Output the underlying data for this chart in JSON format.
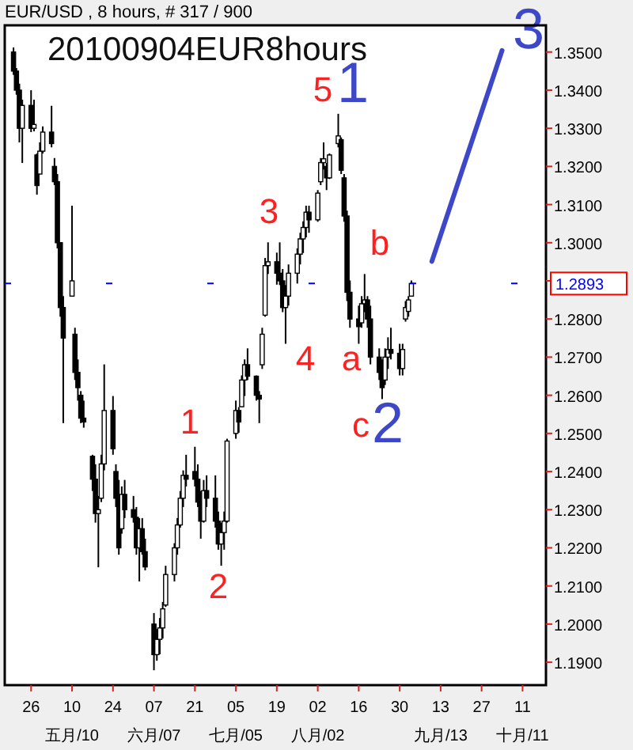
{
  "chart_data": {
    "type": "candlestick",
    "title": "20100904EUR8hours",
    "subtitle": "EUR/USD , 8 hours, # 317 / 900",
    "x": [
      "2010-04-20",
      "2010-04-21",
      "2010-04-22",
      "2010-04-23",
      "2010-04-26",
      "2010-04-27",
      "2010-04-28",
      "2010-04-29",
      "2010-04-30",
      "2010-05-03",
      "2010-05-04",
      "2010-05-05",
      "2010-05-06",
      "2010-05-07",
      "2010-05-10",
      "2010-05-11",
      "2010-05-12",
      "2010-05-13",
      "2010-05-14",
      "2010-05-17",
      "2010-05-18",
      "2010-05-19",
      "2010-05-20",
      "2010-05-21",
      "2010-05-24",
      "2010-05-25",
      "2010-05-26",
      "2010-05-27",
      "2010-05-28",
      "2010-05-31",
      "2010-06-01",
      "2010-06-02",
      "2010-06-03",
      "2010-06-04",
      "2010-06-07",
      "2010-06-08",
      "2010-06-09",
      "2010-06-10",
      "2010-06-11",
      "2010-06-14",
      "2010-06-15",
      "2010-06-16",
      "2010-06-17",
      "2010-06-18",
      "2010-06-21",
      "2010-06-22",
      "2010-06-23",
      "2010-06-24",
      "2010-06-25",
      "2010-06-28",
      "2010-06-29",
      "2010-06-30",
      "2010-07-01",
      "2010-07-02",
      "2010-07-05",
      "2010-07-06",
      "2010-07-07",
      "2010-07-08",
      "2010-07-09",
      "2010-07-12",
      "2010-07-13",
      "2010-07-14",
      "2010-07-15",
      "2010-07-16",
      "2010-07-19",
      "2010-07-20",
      "2010-07-21",
      "2010-07-22",
      "2010-07-23",
      "2010-07-26",
      "2010-07-27",
      "2010-07-28",
      "2010-07-29",
      "2010-07-30",
      "2010-08-02",
      "2010-08-03",
      "2010-08-04",
      "2010-08-05",
      "2010-08-06",
      "2010-08-09",
      "2010-08-10",
      "2010-08-11",
      "2010-08-12",
      "2010-08-13",
      "2010-08-16",
      "2010-08-17",
      "2010-08-18",
      "2010-08-19",
      "2010-08-20",
      "2010-08-23",
      "2010-08-24",
      "2010-08-25",
      "2010-08-26",
      "2010-08-27",
      "2010-08-30",
      "2010-08-31",
      "2010-09-01",
      "2010-09-02",
      "2010-09-03"
    ],
    "ohlc": [
      [
        1.35,
        1.3512,
        1.344,
        1.345
      ],
      [
        1.345,
        1.3458,
        1.3388,
        1.34
      ],
      [
        1.34,
        1.3417,
        1.3263,
        1.33
      ],
      [
        1.33,
        1.3375,
        1.3209,
        1.336
      ],
      [
        1.336,
        1.34,
        1.329,
        1.33
      ],
      [
        1.33,
        1.3375,
        1.3292,
        1.331
      ],
      [
        1.323,
        1.3234,
        1.3126,
        1.315
      ],
      [
        1.318,
        1.3263,
        1.318,
        1.324
      ],
      [
        1.324,
        1.3305,
        1.3234,
        1.329
      ],
      [
        1.329,
        1.3359,
        1.325,
        1.326
      ],
      [
        1.32,
        1.3222,
        1.3151,
        1.316
      ],
      [
        1.316,
        1.318,
        1.2985,
        1.3
      ],
      [
        1.3,
        1.3001,
        1.2806,
        1.283
      ],
      [
        1.283,
        1.286,
        1.2527,
        1.275
      ],
      [
        1.286,
        1.3097,
        1.286,
        1.29
      ],
      [
        1.276,
        1.2777,
        1.264,
        1.266
      ],
      [
        1.266,
        1.2694,
        1.2586,
        1.262
      ],
      [
        1.26,
        1.2611,
        1.2527,
        1.254
      ],
      [
        1.254,
        1.2586,
        1.2515,
        1.253
      ],
      [
        1.244,
        1.2444,
        1.2349,
        1.238
      ],
      [
        1.238,
        1.2419,
        1.2266,
        1.229
      ],
      [
        1.229,
        1.2336,
        1.2149,
        1.23
      ],
      [
        1.233,
        1.2444,
        1.232,
        1.242
      ],
      [
        1.242,
        1.2681,
        1.2403,
        1.256
      ],
      [
        1.256,
        1.2598,
        1.2444,
        1.246
      ],
      [
        1.24,
        1.2419,
        1.2307,
        1.233
      ],
      [
        1.233,
        1.2378,
        1.2182,
        1.22
      ],
      [
        1.225,
        1.2361,
        1.2237,
        1.234
      ],
      [
        1.234,
        1.2378,
        1.2278,
        1.23
      ],
      [
        1.23,
        1.2336,
        1.2266,
        1.228
      ],
      [
        1.228,
        1.2307,
        1.2182,
        1.22
      ],
      [
        1.22,
        1.2278,
        1.2112,
        1.225
      ],
      [
        1.225,
        1.2278,
        1.2182,
        1.219
      ],
      [
        1.219,
        1.2224,
        1.2141,
        1.215
      ],
      [
        1.2,
        1.2029,
        1.1879,
        1.192
      ],
      [
        1.192,
        1.1987,
        1.1904,
        1.196
      ],
      [
        1.196,
        1.2016,
        1.1921,
        1.199
      ],
      [
        1.199,
        1.2058,
        1.1962,
        1.204
      ],
      [
        1.205,
        1.2153,
        1.2045,
        1.213
      ],
      [
        1.213,
        1.2212,
        1.2112,
        1.22
      ],
      [
        1.22,
        1.2278,
        1.2182,
        1.226
      ],
      [
        1.226,
        1.2349,
        1.2253,
        1.233
      ],
      [
        1.233,
        1.2403,
        1.2307,
        1.239
      ],
      [
        1.239,
        1.2444,
        1.2361,
        1.238
      ],
      [
        1.24,
        1.2465,
        1.2361,
        1.238
      ],
      [
        1.238,
        1.2419,
        1.2307,
        1.232
      ],
      [
        1.232,
        1.2349,
        1.2224,
        1.227
      ],
      [
        1.227,
        1.2378,
        1.2266,
        1.235
      ],
      [
        1.235,
        1.239,
        1.2307,
        1.233
      ],
      [
        1.233,
        1.239,
        1.2253,
        1.227
      ],
      [
        1.227,
        1.2295,
        1.2195,
        1.221
      ],
      [
        1.221,
        1.2266,
        1.2153,
        1.224
      ],
      [
        1.224,
        1.2295,
        1.2195,
        1.227
      ],
      [
        1.227,
        1.2486,
        1.2266,
        1.248
      ],
      [
        1.25,
        1.2586,
        1.2486,
        1.256
      ],
      [
        1.256,
        1.2569,
        1.2502,
        1.253
      ],
      [
        1.257,
        1.2652,
        1.2569,
        1.264
      ],
      [
        1.264,
        1.2694,
        1.2598,
        1.268
      ],
      [
        1.268,
        1.2723,
        1.264,
        1.265
      ],
      [
        1.265,
        1.2652,
        1.2586,
        1.26
      ],
      [
        1.26,
        1.2611,
        1.2527,
        1.259
      ],
      [
        1.268,
        1.2777,
        1.2669,
        1.276
      ],
      [
        1.281,
        1.296,
        1.2806,
        1.294
      ],
      [
        1.294,
        1.3001,
        1.2918,
        1.295
      ],
      [
        1.295,
        1.2974,
        1.289,
        1.292
      ],
      [
        1.292,
        1.3001,
        1.2889,
        1.29
      ],
      [
        1.29,
        1.2931,
        1.2818,
        1.283
      ],
      [
        1.283,
        1.2889,
        1.2735,
        1.286
      ],
      [
        1.286,
        1.2943,
        1.2835,
        1.292
      ],
      [
        1.292,
        1.2985,
        1.2893,
        1.297
      ],
      [
        1.297,
        1.3026,
        1.2943,
        1.301
      ],
      [
        1.301,
        1.3056,
        1.2973,
        1.304
      ],
      [
        1.304,
        1.3097,
        1.3014,
        1.308
      ],
      [
        1.308,
        1.3097,
        1.3026,
        1.306
      ],
      [
        1.306,
        1.3138,
        1.3055,
        1.313
      ],
      [
        1.316,
        1.3222,
        1.3151,
        1.321
      ],
      [
        1.321,
        1.3263,
        1.3192,
        1.322
      ],
      [
        1.32,
        1.3209,
        1.3138,
        1.317
      ],
      [
        1.317,
        1.3234,
        1.3167,
        1.323
      ],
      [
        1.326,
        1.3338,
        1.325,
        1.328
      ],
      [
        1.327,
        1.3276,
        1.318,
        1.319
      ],
      [
        1.317,
        1.318,
        1.3055,
        1.307
      ],
      [
        1.307,
        1.3084,
        1.2847,
        1.287
      ],
      [
        1.287,
        1.2901,
        1.2777,
        1.28
      ],
      [
        1.28,
        1.2835,
        1.2735,
        1.278
      ],
      [
        1.279,
        1.286,
        1.2777,
        1.284
      ],
      [
        1.284,
        1.2918,
        1.2818,
        1.285
      ],
      [
        1.285,
        1.286,
        1.2777,
        1.28
      ],
      [
        1.28,
        1.2835,
        1.2681,
        1.27
      ],
      [
        1.27,
        1.2723,
        1.264,
        1.266
      ],
      [
        1.266,
        1.2694,
        1.259,
        1.262
      ],
      [
        1.264,
        1.2723,
        1.2627,
        1.27
      ],
      [
        1.27,
        1.2752,
        1.2669,
        1.272
      ],
      [
        1.272,
        1.2777,
        1.2694,
        1.271
      ],
      [
        1.271,
        1.2735,
        1.2652,
        1.267
      ],
      [
        1.267,
        1.2735,
        1.2652,
        1.272
      ],
      [
        1.28,
        1.2847,
        1.2793,
        1.283
      ],
      [
        1.282,
        1.286,
        1.2806,
        1.285
      ],
      [
        1.286,
        1.2901,
        1.286,
        1.2893
      ]
    ],
    "series": [
      {
        "type": "line",
        "x": [
          "2010-09-10",
          "2010-10-04"
        ],
        "values": [
          1.2951,
          1.3504
        ],
        "color": "#3c48c8"
      }
    ],
    "xlim": [
      "2010-04-17",
      "2010-10-19"
    ],
    "xticks": [
      {
        "value": "2010-04-26",
        "label": "26"
      },
      {
        "value": "2010-05-10",
        "label": "10\n五月/10"
      },
      {
        "value": "2010-05-24",
        "label": "24"
      },
      {
        "value": "2010-06-07",
        "label": "07\n六月/07"
      },
      {
        "value": "2010-06-21",
        "label": "21"
      },
      {
        "value": "2010-07-05",
        "label": "05\n七月/05"
      },
      {
        "value": "2010-07-19",
        "label": "19"
      },
      {
        "value": "2010-08-02",
        "label": "02\n八月/02"
      },
      {
        "value": "2010-08-16",
        "label": "16"
      },
      {
        "value": "2010-08-30",
        "label": "30"
      },
      {
        "value": "2010-09-13",
        "label": "13\n九月/13"
      },
      {
        "value": "2010-09-27",
        "label": "27"
      },
      {
        "value": "2010-10-11",
        "label": "11\n十月/11"
      }
    ],
    "ylim": [
      1.184,
      1.357
    ],
    "yticks": [
      {
        "value": 1.19,
        "label": "1.1900"
      },
      {
        "value": 1.2,
        "label": "1.2000"
      },
      {
        "value": 1.21,
        "label": "1.2100"
      },
      {
        "value": 1.22,
        "label": "1.2200"
      },
      {
        "value": 1.23,
        "label": "1.2300"
      },
      {
        "value": 1.24,
        "label": "1.2400"
      },
      {
        "value": 1.25,
        "label": "1.2500"
      },
      {
        "value": 1.26,
        "label": "1.2600"
      },
      {
        "value": 1.27,
        "label": "1.2700"
      },
      {
        "value": 1.28,
        "label": "1.2800"
      },
      {
        "value": 1.29,
        "label": null
      },
      {
        "value": 1.3,
        "label": "1.3000"
      },
      {
        "value": 1.31,
        "label": "1.3100"
      },
      {
        "value": 1.32,
        "label": "1.3200"
      },
      {
        "value": 1.33,
        "label": "1.3300"
      },
      {
        "value": 1.34,
        "label": "1.3400"
      },
      {
        "value": 1.35,
        "label": "1.3500"
      }
    ],
    "ref_lines": [
      {
        "axis": "y",
        "value": 1.2893,
        "label": "1.2893",
        "color": "#0000ff"
      }
    ],
    "annotations": [
      "1",
      "2",
      "3",
      "4",
      "5",
      "1",
      "a",
      "b",
      "c",
      "2",
      "3"
    ]
  }
}
